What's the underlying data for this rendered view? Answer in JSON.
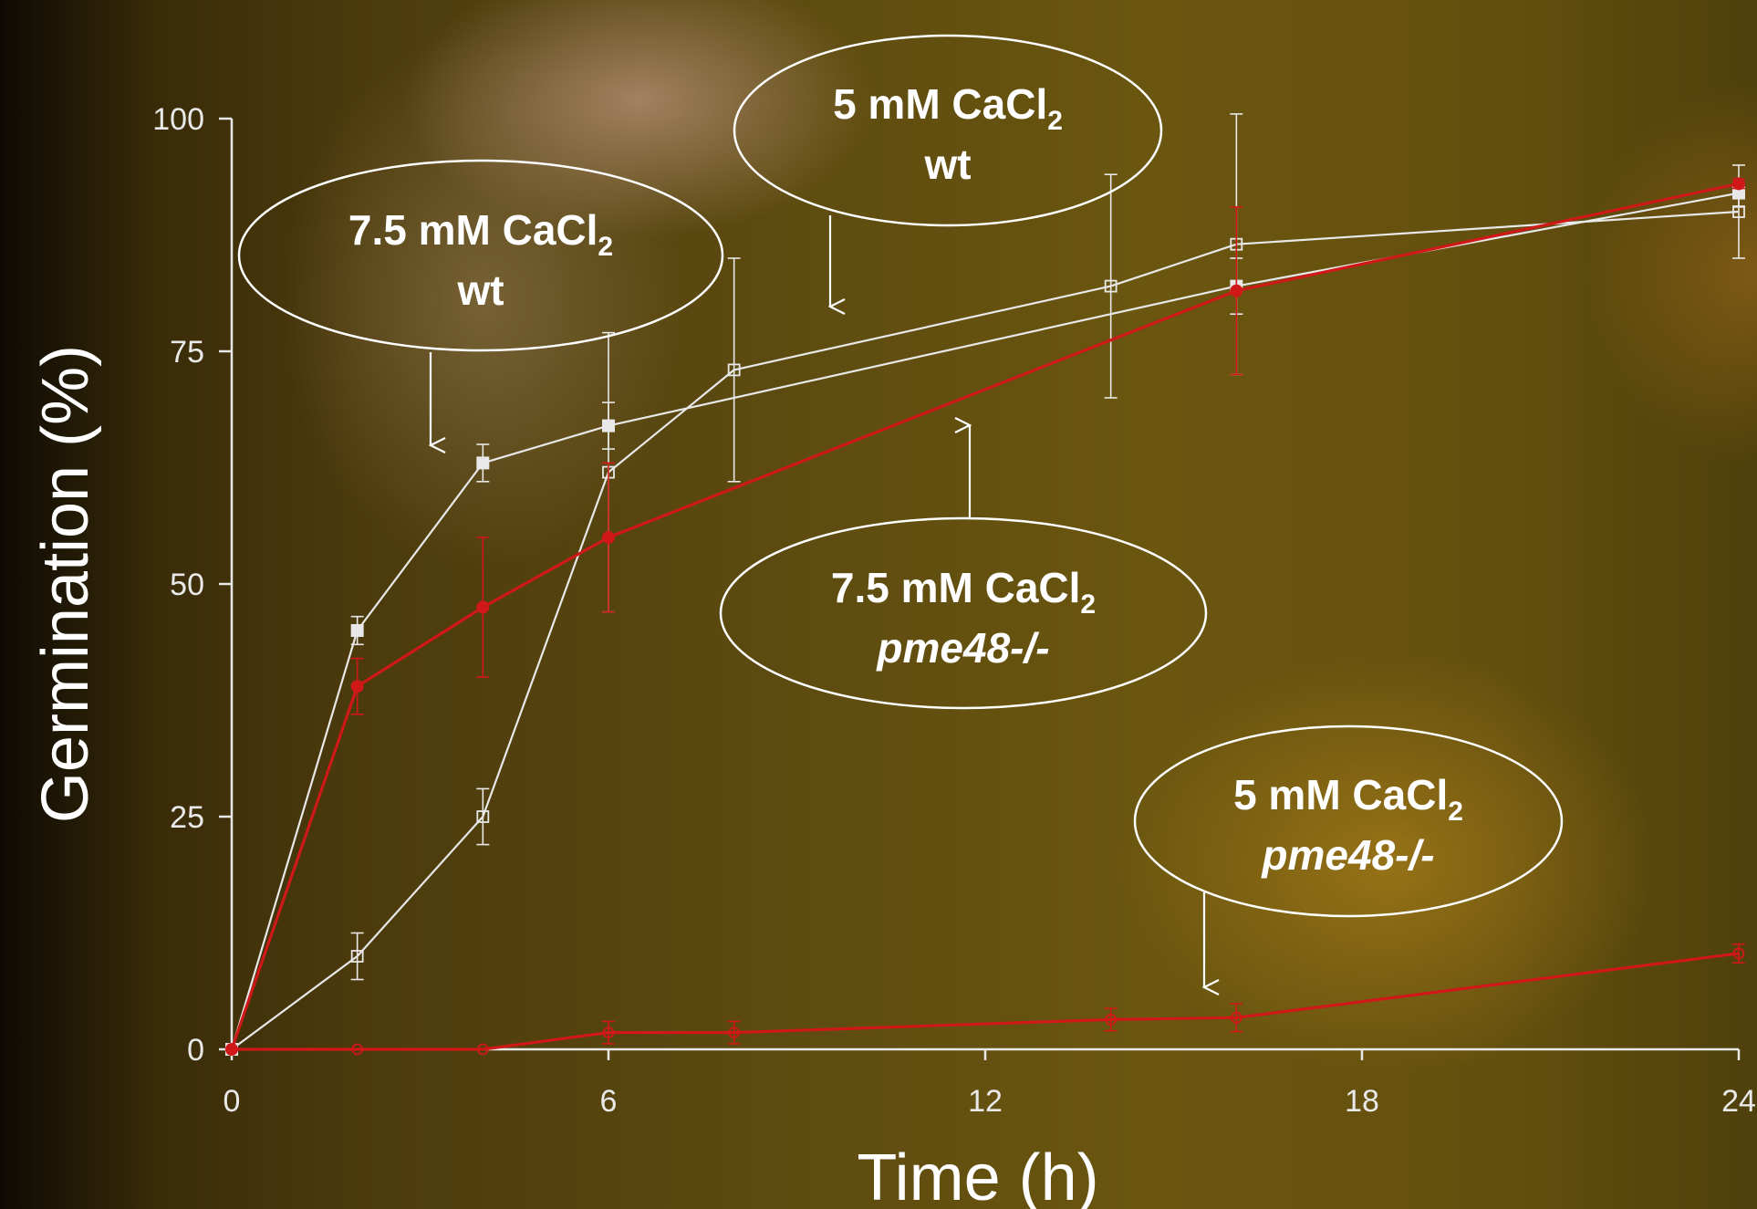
{
  "chart_data": {
    "type": "line",
    "title": "",
    "xlabel": "Time (h)",
    "ylabel": "Germination (%)",
    "xlim": [
      0,
      24
    ],
    "ylim": [
      0,
      100
    ],
    "x_ticks": [
      "0",
      "6",
      "12",
      "18",
      "24"
    ],
    "y_ticks": [
      "0",
      "25",
      "50",
      "75",
      "100"
    ],
    "grid": false,
    "series": [
      {
        "id": "wt-7-5",
        "color": "#e8e8e8",
        "marker": "filled-square",
        "x": [
          0,
          2,
          4,
          6,
          16,
          24
        ],
        "y": [
          0,
          45,
          63,
          67,
          82,
          92
        ],
        "err": [
          0,
          1.5,
          2,
          2.5,
          3,
          1.5
        ]
      },
      {
        "id": "wt-5",
        "color": "#e8e8e8",
        "marker": "open-square",
        "x": [
          0,
          2,
          4,
          6,
          8,
          14,
          16,
          24
        ],
        "y": [
          0,
          10,
          25,
          62,
          73,
          82,
          86.5,
          90
        ],
        "err": [
          0,
          2.5,
          3,
          15,
          12,
          12,
          14,
          5
        ]
      },
      {
        "id": "pme48-7-5",
        "color": "#d01818",
        "marker": "filled-circle",
        "x": [
          0,
          2,
          4,
          6,
          16,
          24
        ],
        "y": [
          0,
          39,
          47.5,
          55,
          81.5,
          93
        ],
        "err": [
          0,
          3,
          7.5,
          8,
          9,
          0.5
        ]
      },
      {
        "id": "pme48-5",
        "color": "#d01818",
        "marker": "open-circle",
        "x": [
          0,
          2,
          4,
          6,
          8,
          14,
          16,
          24
        ],
        "y": [
          0,
          0,
          0,
          1.8,
          1.8,
          3.2,
          3.4,
          10.3
        ],
        "err": [
          0,
          0,
          0,
          1.2,
          1.2,
          1.2,
          1.5,
          1
        ]
      }
    ],
    "annotations": [
      {
        "line1_main": "7.5 mM CaCl",
        "line1_sub": "2",
        "line2": "wt",
        "line2_style": "normal"
      },
      {
        "line1_main": "5 mM CaCl",
        "line1_sub": "2",
        "line2": "wt",
        "line2_style": "normal"
      },
      {
        "line1_main": "7.5 mM CaCl",
        "line1_sub": "2",
        "line2": "pme48-/-",
        "line2_style": "italic"
      },
      {
        "line1_main": "5 mM CaCl",
        "line1_sub": "2",
        "line2": "pme48-/-",
        "line2_style": "italic"
      }
    ]
  }
}
